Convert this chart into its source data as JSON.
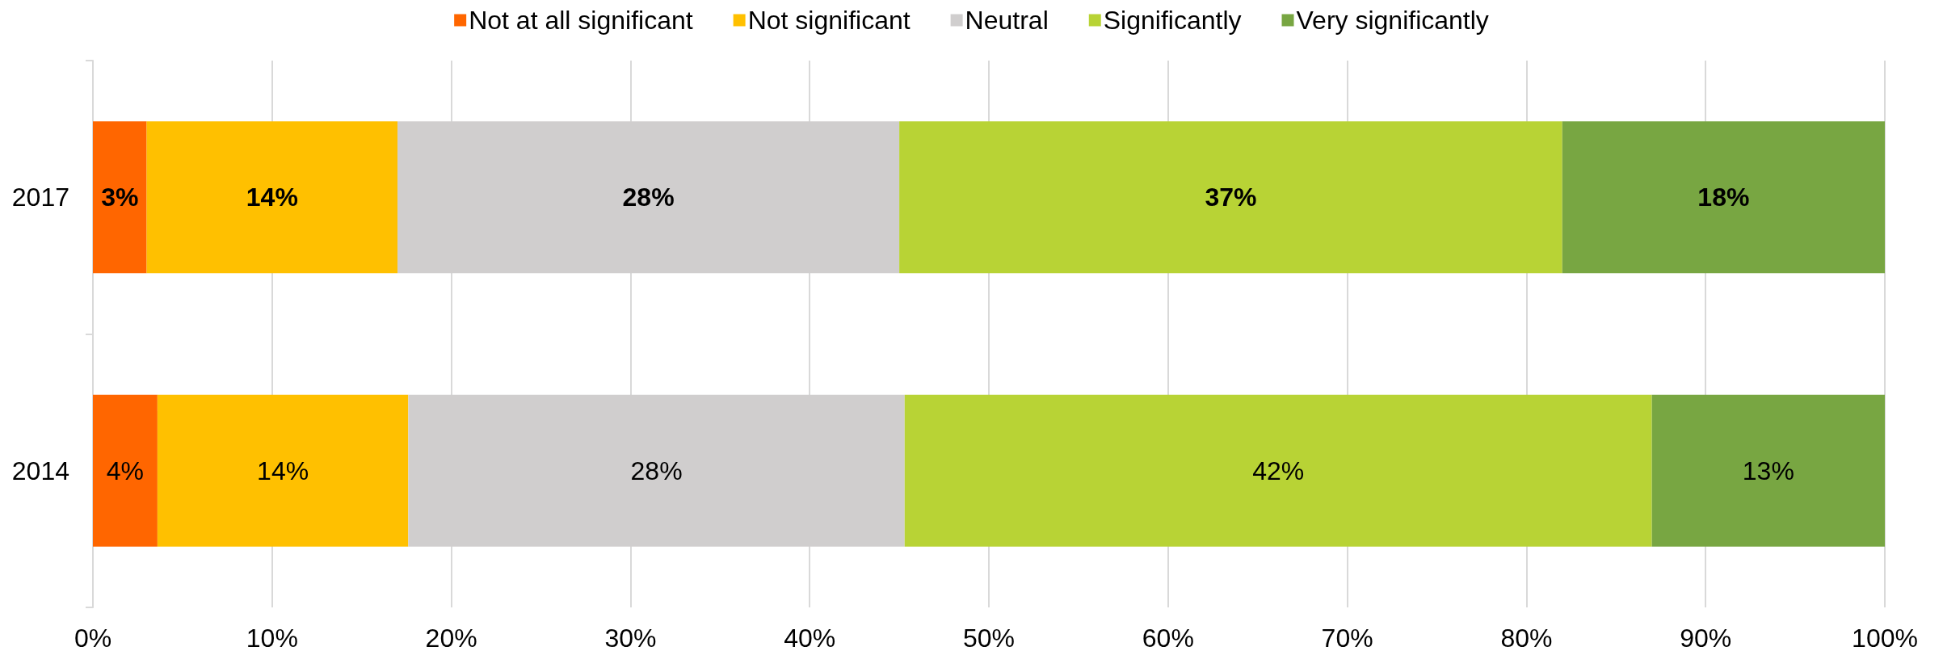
{
  "chart_data": {
    "type": "bar",
    "orientation": "horizontal",
    "stacked": true,
    "categories": [
      "2017",
      "2014"
    ],
    "series": [
      {
        "name": "Not at all significant",
        "color": "#ff6600",
        "values": [
          3,
          3.6
        ],
        "value_labels": [
          "3%",
          "4%"
        ]
      },
      {
        "name": "Not significant",
        "color": "#ffc000",
        "values": [
          14,
          14.0
        ],
        "value_labels": [
          "14%",
          "14%"
        ]
      },
      {
        "name": "Neutral",
        "color": "#d0cece",
        "values": [
          28,
          27.7
        ],
        "value_labels": [
          "28%",
          "28%"
        ]
      },
      {
        "name": "Significantly",
        "color": "#b8d335",
        "values": [
          37,
          41.7
        ],
        "value_labels": [
          "37%",
          "42%"
        ]
      },
      {
        "name": "Very significantly",
        "color": "#78a642",
        "values": [
          18,
          13.0
        ],
        "value_labels": [
          "18%",
          "13%"
        ]
      }
    ],
    "xlim": [
      0,
      100
    ],
    "xticks": [
      {
        "value": 0,
        "label": "0%"
      },
      {
        "value": 10,
        "label": "10%"
      },
      {
        "value": 20,
        "label": "20%"
      },
      {
        "value": 30,
        "label": "30%"
      },
      {
        "value": 40,
        "label": "40%"
      },
      {
        "value": 50,
        "label": "50%"
      },
      {
        "value": 60,
        "label": "60%"
      },
      {
        "value": 70,
        "label": "70%"
      },
      {
        "value": 80,
        "label": "80%"
      },
      {
        "value": 90,
        "label": "90%"
      },
      {
        "value": 100,
        "label": "100%"
      }
    ],
    "grid": "x",
    "legend": "top"
  }
}
